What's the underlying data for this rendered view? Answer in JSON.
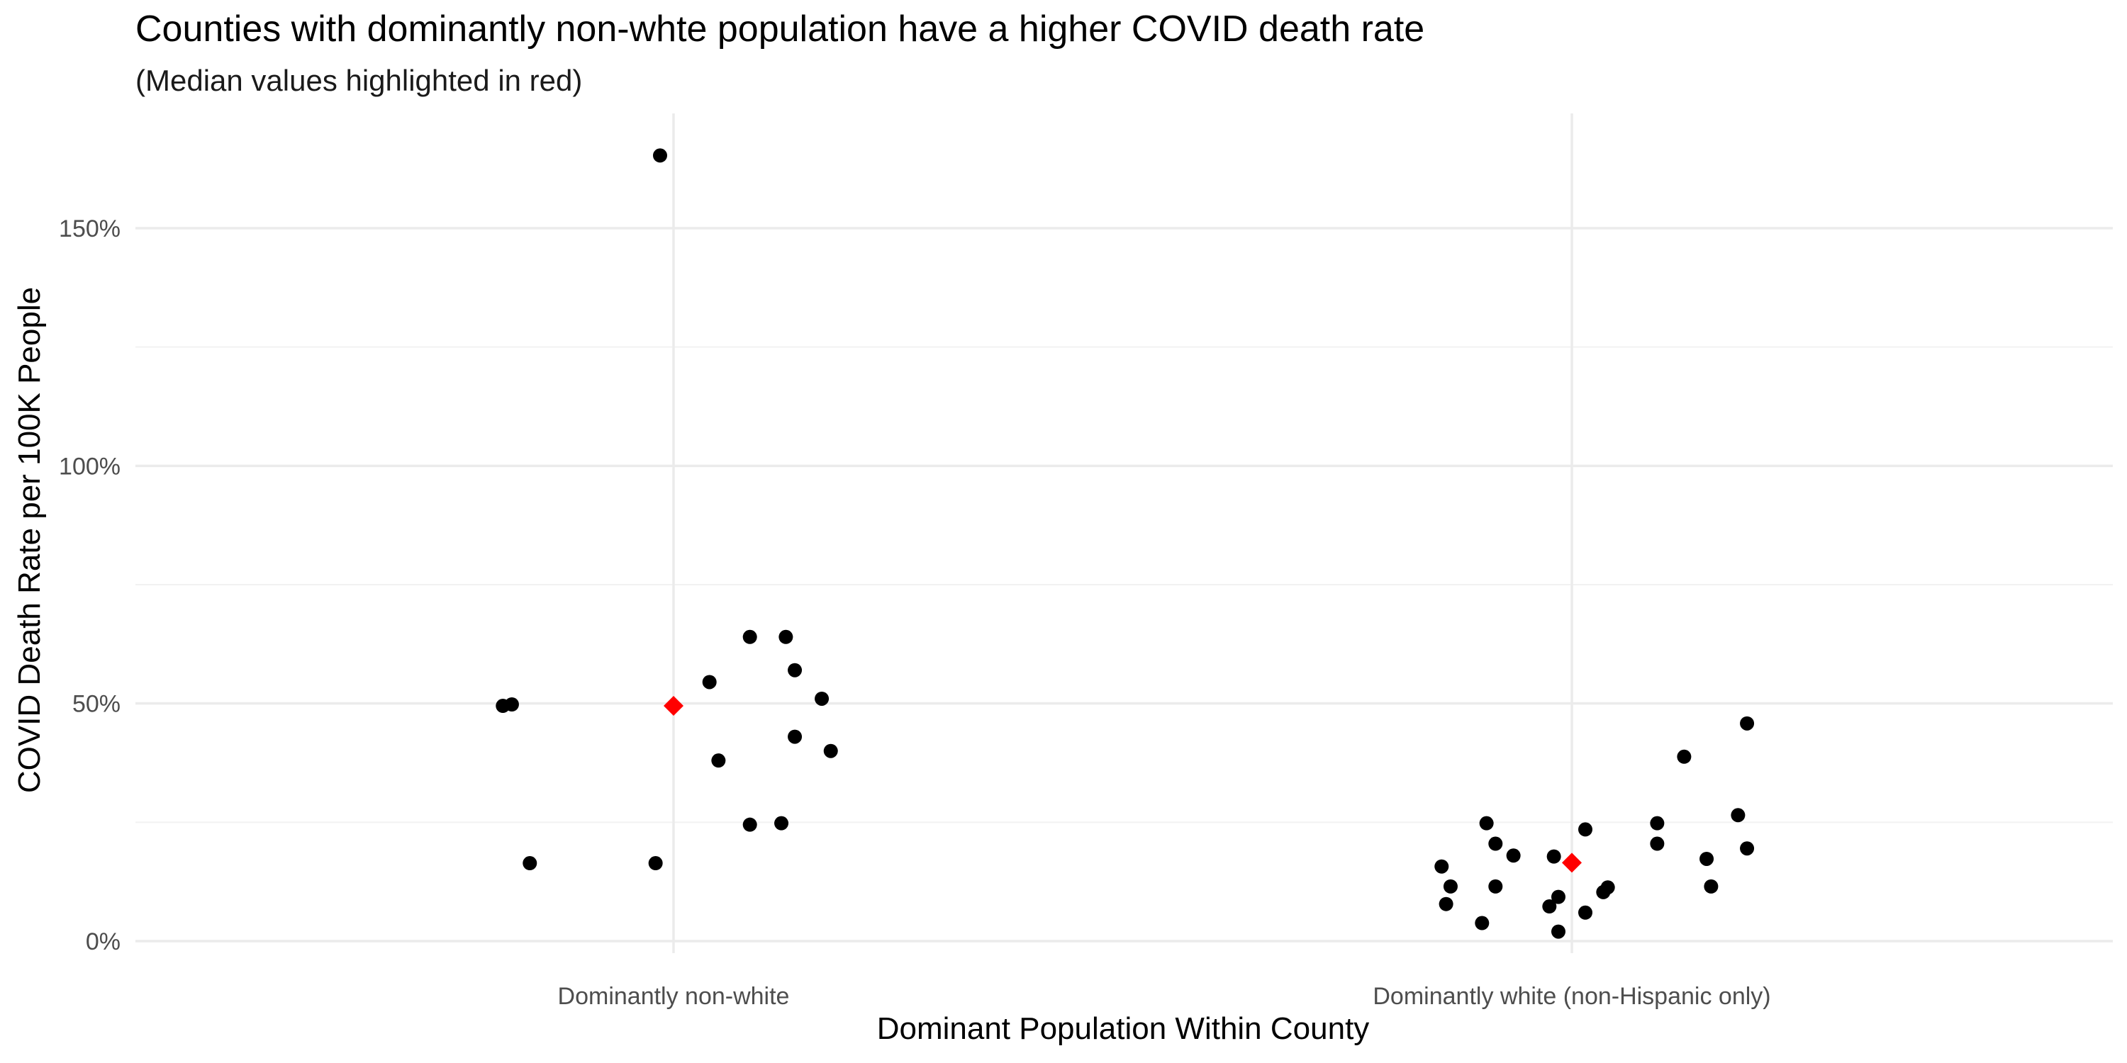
{
  "chart_data": {
    "type": "scatter",
    "title": "Counties with dominantly non-whte population have a higher COVID death rate",
    "subtitle": "(Median values highlighted in red)",
    "xlabel": "Dominant Population Within County",
    "ylabel": "COVID Death Rate per 100K People",
    "categories": [
      "Dominantly non-white",
      "Dominantly white (non-Hispanic only)"
    ],
    "y_ticks": [
      0,
      50,
      100,
      150
    ],
    "y_tick_labels": [
      "0%",
      "50%",
      "100%",
      "150%"
    ],
    "ylim": [
      -4,
      174
    ],
    "grid": true,
    "point_color": "#000000",
    "median_color": "#ff0000",
    "series": [
      {
        "category": "Dominantly non-white",
        "points": [
          {
            "jitter": -0.03,
            "y": 165.3
          },
          {
            "jitter": 0.17,
            "y": 64.0
          },
          {
            "jitter": 0.25,
            "y": 64.0
          },
          {
            "jitter": 0.27,
            "y": 57.0
          },
          {
            "jitter": 0.08,
            "y": 54.5
          },
          {
            "jitter": 0.33,
            "y": 51.0
          },
          {
            "jitter": -0.38,
            "y": 49.5
          },
          {
            "jitter": -0.36,
            "y": 49.8
          },
          {
            "jitter": 0.27,
            "y": 43.0
          },
          {
            "jitter": 0.35,
            "y": 40.0
          },
          {
            "jitter": 0.1,
            "y": 38.0
          },
          {
            "jitter": 0.24,
            "y": 24.8
          },
          {
            "jitter": 0.17,
            "y": 24.5
          },
          {
            "jitter": -0.32,
            "y": 16.4
          },
          {
            "jitter": -0.04,
            "y": 16.4
          }
        ],
        "median": 49.5
      },
      {
        "category": "Dominantly white (non-Hispanic only)",
        "points": [
          {
            "jitter": 0.39,
            "y": 45.8
          },
          {
            "jitter": 0.25,
            "y": 38.8
          },
          {
            "jitter": 0.37,
            "y": 26.5
          },
          {
            "jitter": -0.19,
            "y": 24.8
          },
          {
            "jitter": 0.19,
            "y": 24.8
          },
          {
            "jitter": 0.03,
            "y": 23.5
          },
          {
            "jitter": 0.19,
            "y": 20.5
          },
          {
            "jitter": -0.17,
            "y": 20.5
          },
          {
            "jitter": 0.39,
            "y": 19.5
          },
          {
            "jitter": -0.13,
            "y": 18.0
          },
          {
            "jitter": -0.04,
            "y": 17.8
          },
          {
            "jitter": 0.3,
            "y": 17.3
          },
          {
            "jitter": -0.29,
            "y": 15.7
          },
          {
            "jitter": -0.27,
            "y": 11.5
          },
          {
            "jitter": -0.17,
            "y": 11.5
          },
          {
            "jitter": 0.08,
            "y": 11.3
          },
          {
            "jitter": 0.31,
            "y": 11.5
          },
          {
            "jitter": 0.07,
            "y": 10.3
          },
          {
            "jitter": -0.03,
            "y": 9.3
          },
          {
            "jitter": -0.28,
            "y": 7.8
          },
          {
            "jitter": -0.05,
            "y": 7.3
          },
          {
            "jitter": 0.03,
            "y": 6.0
          },
          {
            "jitter": -0.2,
            "y": 3.8
          },
          {
            "jitter": -0.03,
            "y": 2.0
          }
        ],
        "median": 16.5
      }
    ]
  }
}
